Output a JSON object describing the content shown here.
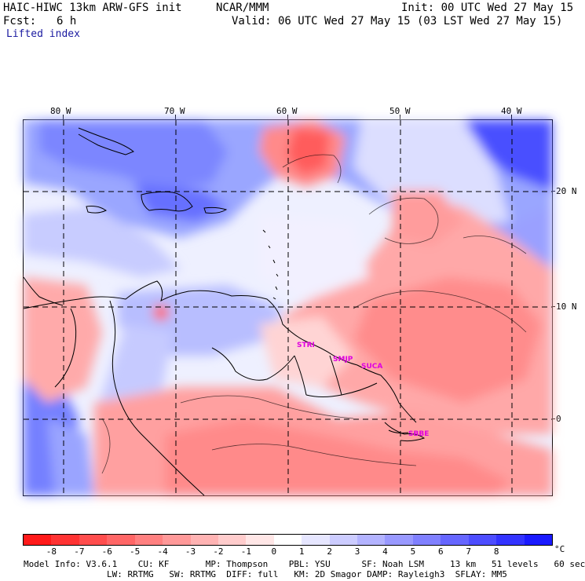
{
  "header": {
    "model": "HAIC-HIWC 13km ARW-GFS init",
    "center": "NCAR/MMM",
    "init": "Init: 00 UTC Wed 27 May 15",
    "fcst_label": "Fcst:",
    "fcst_value": "6 h",
    "valid": "Valid: 06 UTC Wed 27 May 15 (03 LST Wed 27 May 15)",
    "field": "Lifted index"
  },
  "map": {
    "lon_labels": [
      "80 W",
      "70 W",
      "60 W",
      "50 W",
      "40 W"
    ],
    "lat_labels": [
      "20 N",
      "10 N",
      "0"
    ],
    "cities": [
      "STRI",
      "SMJP",
      "SUCA",
      "SBBE"
    ]
  },
  "colorbar": {
    "labels": [
      "-8",
      "-7",
      "-6",
      "-5",
      "-4",
      "-3",
      "-2",
      "-1",
      "0",
      "1",
      "2",
      "3",
      "4",
      "5",
      "6",
      "7",
      "8"
    ],
    "unit": "°C",
    "colors": [
      "#ff1a1a",
      "#ff3333",
      "#ff4d4d",
      "#ff6666",
      "#ff8080",
      "#ff9999",
      "#ffb3b3",
      "#ffcccc",
      "#ffe6e6",
      "#ffffff",
      "#e6e6ff",
      "#ccccff",
      "#b3b3ff",
      "#9999ff",
      "#8080ff",
      "#6666ff",
      "#4d4dff",
      "#3333ff",
      "#1a1aff"
    ]
  },
  "info": {
    "line1": "Model Info: V3.6.1    CU: KF       MP: Thompson    PBL: YSU      SF: Noah LSM     13 km   51 levels   60 sec",
    "line2": "                LW: RRTMG   SW: RRTMG  DIFF: full   KM: 2D Smagor DAMP: Rayleigh3  SFLAY: MM5"
  }
}
